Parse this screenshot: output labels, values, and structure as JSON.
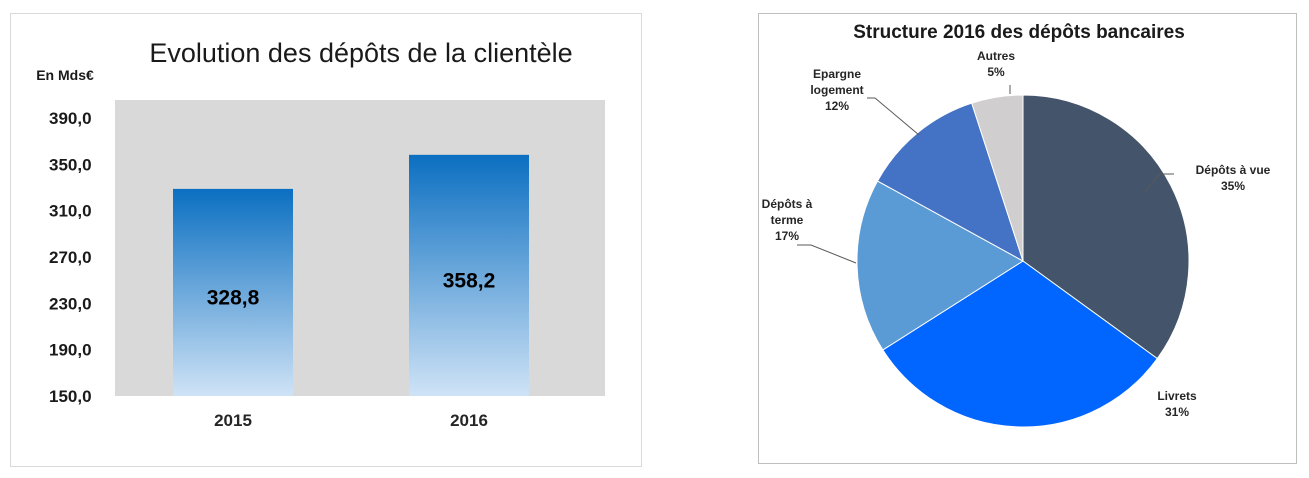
{
  "chart_data": [
    {
      "type": "bar",
      "title": "Evolution des dépôts de la clientèle",
      "ylabel": "En Mds€",
      "xlabel": "",
      "categories": [
        "2015",
        "2016"
      ],
      "values": [
        328.8,
        358.2
      ],
      "value_labels": [
        "328,8",
        "358,2"
      ],
      "ylim": [
        150,
        390
      ],
      "yticks": [
        "390,0",
        "350,0",
        "310,0",
        "270,0",
        "230,0",
        "190,0",
        "150,0"
      ],
      "ytick_values": [
        390,
        350,
        310,
        270,
        230,
        190,
        150
      ],
      "grid": false,
      "colors": {
        "plot_background": "#d9d9d9",
        "bar_top": "#0b6fc1",
        "bar_bottom": "#cfe3f6"
      }
    },
    {
      "type": "pie",
      "title": "Structure 2016 des dépôts bancaires",
      "slices": [
        {
          "label_lines": [
            "Dépôts à vue",
            "35%"
          ],
          "value": 35,
          "color": "#44546a"
        },
        {
          "label_lines": [
            "Livrets",
            "31%"
          ],
          "value": 31,
          "color": "#0066ff"
        },
        {
          "label_lines": [
            "Dépôts à",
            "terme",
            "17%"
          ],
          "value": 17,
          "color": "#5b9bd5"
        },
        {
          "label_lines": [
            "Epargne",
            "logement",
            "12%"
          ],
          "value": 12,
          "color": "#4472c4"
        },
        {
          "label_lines": [
            "Autres",
            "5%"
          ],
          "value": 5,
          "color": "#d0cece"
        }
      ]
    }
  ]
}
